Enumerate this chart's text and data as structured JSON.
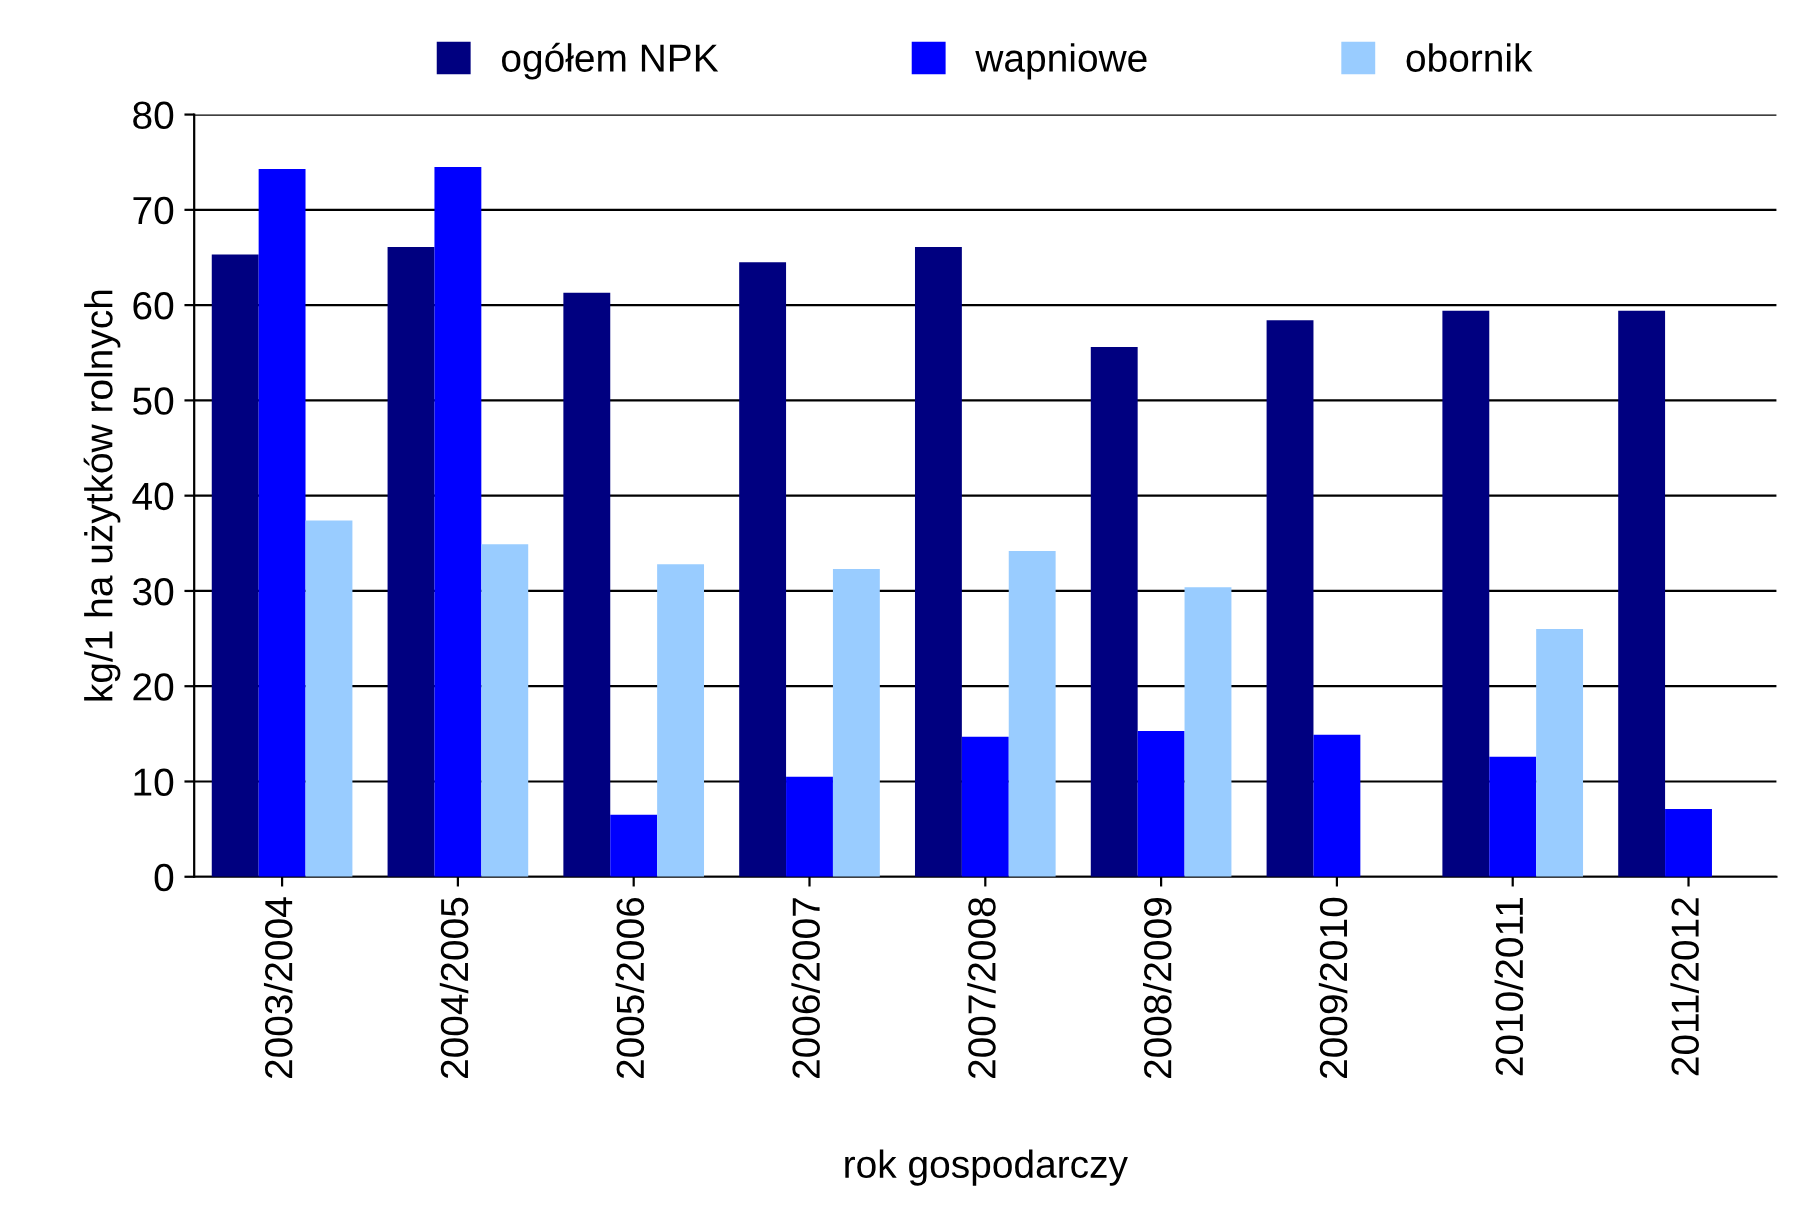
{
  "chart_data": {
    "type": "bar",
    "xlabel": "rok gospodarczy",
    "ylabel": "kg/1 ha użytków rolnych",
    "categories": [
      "2003/2004",
      "2004/2005",
      "2005/2006",
      "2006/2007",
      "2007/2008",
      "2008/2009",
      "2009/2010",
      "2010/2011",
      "2011/2012"
    ],
    "series": [
      {
        "name": "ogółem NPK",
        "color": "#000080",
        "values": [
          65.3,
          66.1,
          61.3,
          64.5,
          66.1,
          55.6,
          58.4,
          59.4,
          59.4
        ]
      },
      {
        "name": "wapniowe",
        "color": "#0000ff",
        "values": [
          74.3,
          74.5,
          6.5,
          10.5,
          14.7,
          15.3,
          14.9,
          12.6,
          7.1
        ]
      },
      {
        "name": "obornik",
        "color": "#99ccff",
        "values": [
          37.4,
          34.9,
          32.8,
          32.3,
          34.2,
          30.4,
          null,
          26.0,
          null
        ]
      }
    ],
    "ylim": [
      0,
      80
    ],
    "yticks": [
      0,
      10,
      20,
      30,
      40,
      50,
      60,
      70,
      80
    ],
    "grid": "y",
    "legend": "top"
  }
}
